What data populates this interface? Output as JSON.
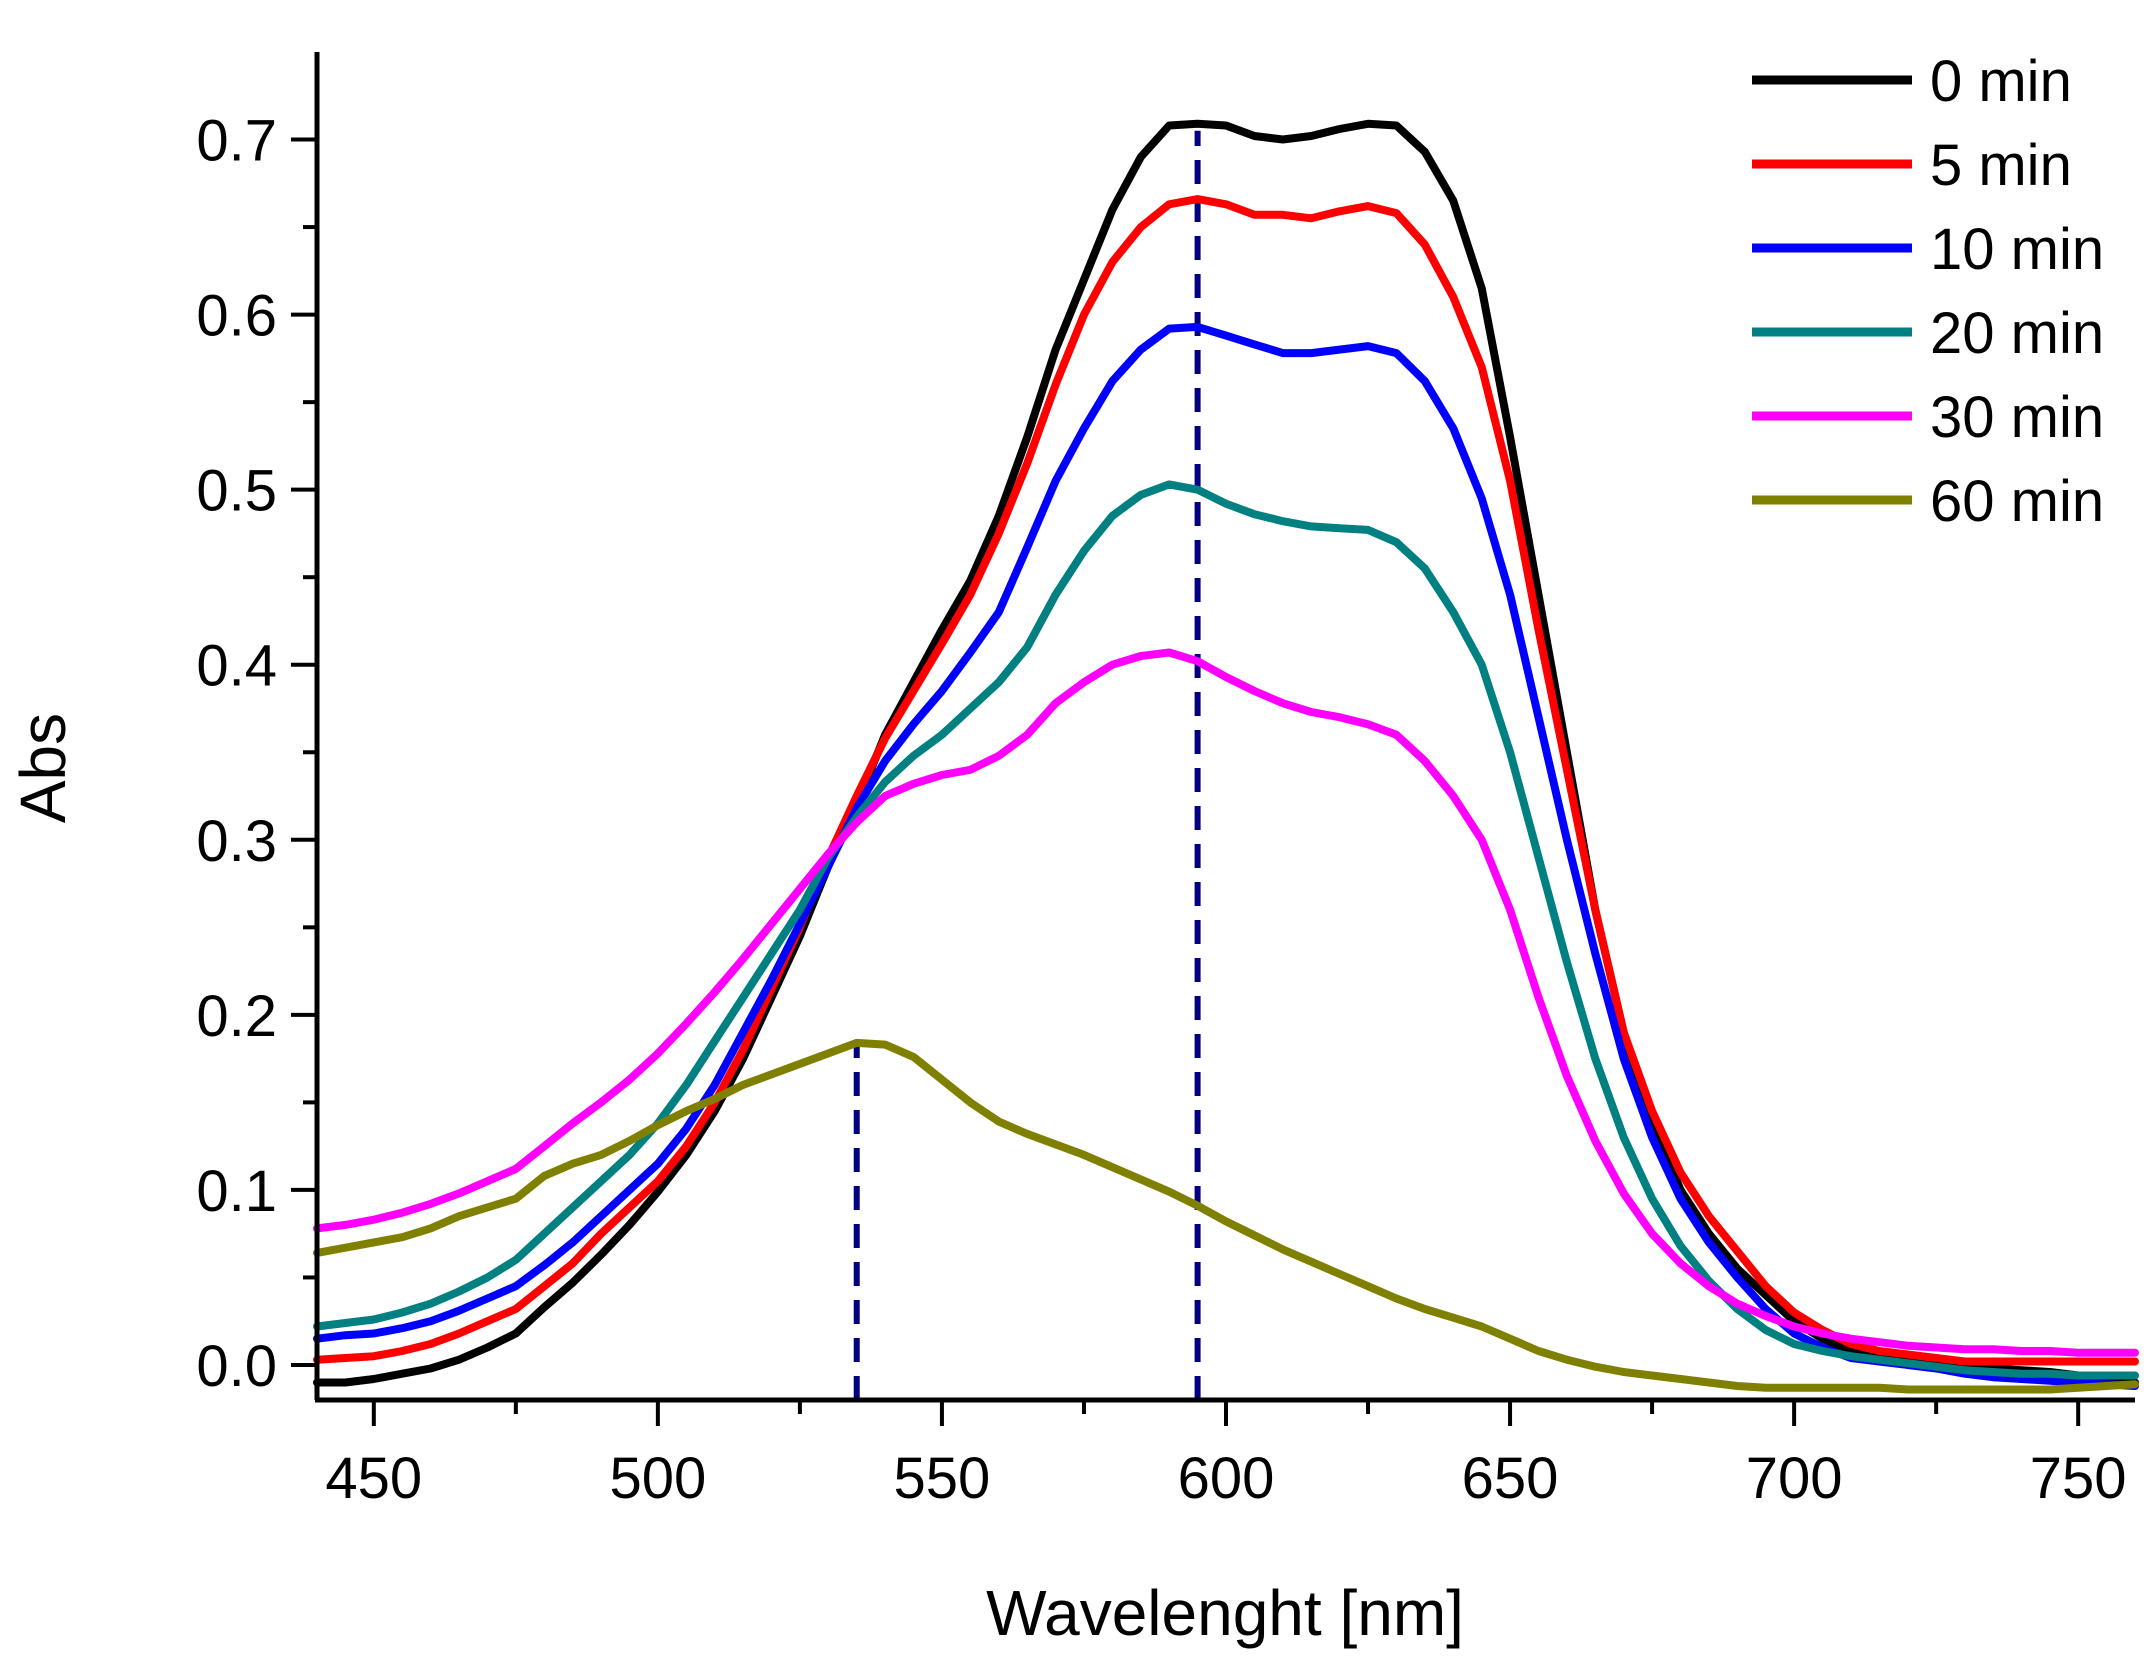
{
  "chart_data": {
    "type": "line",
    "title": "",
    "xlabel": "Wavelenght [nm]",
    "ylabel": "Abs",
    "xlim": [
      440,
      760
    ],
    "ylim": [
      -0.02,
      0.75
    ],
    "xticks": [
      450,
      500,
      550,
      600,
      650,
      700,
      750
    ],
    "yticks": [
      0.0,
      0.1,
      0.2,
      0.3,
      0.4,
      0.5,
      0.6,
      0.7
    ],
    "ytick_labels": [
      "0.0",
      "0.1",
      "0.2",
      "0.3",
      "0.4",
      "0.5",
      "0.6",
      "0.7"
    ],
    "x": [
      440,
      445,
      450,
      455,
      460,
      465,
      470,
      475,
      480,
      485,
      490,
      495,
      500,
      505,
      510,
      515,
      520,
      525,
      530,
      535,
      540,
      545,
      550,
      555,
      560,
      565,
      570,
      575,
      580,
      585,
      590,
      595,
      600,
      605,
      610,
      615,
      620,
      625,
      630,
      635,
      640,
      645,
      650,
      655,
      660,
      665,
      670,
      675,
      680,
      685,
      690,
      695,
      700,
      705,
      710,
      715,
      720,
      725,
      730,
      735,
      740,
      745,
      750,
      755,
      760
    ],
    "series": [
      {
        "name": "0 min",
        "color": "#000000",
        "values": [
          -0.01,
          -0.01,
          -0.008,
          -0.005,
          -0.002,
          0.003,
          0.01,
          0.018,
          0.033,
          0.047,
          0.063,
          0.08,
          0.099,
          0.12,
          0.145,
          0.175,
          0.21,
          0.245,
          0.285,
          0.32,
          0.36,
          0.39,
          0.42,
          0.448,
          0.485,
          0.53,
          0.58,
          0.62,
          0.66,
          0.69,
          0.708,
          0.709,
          0.708,
          0.702,
          0.7,
          0.702,
          0.706,
          0.709,
          0.708,
          0.693,
          0.665,
          0.615,
          0.53,
          0.44,
          0.35,
          0.26,
          0.19,
          0.14,
          0.1,
          0.075,
          0.055,
          0.04,
          0.025,
          0.015,
          0.008,
          0.005,
          0.003,
          0.001,
          0.0,
          -0.002,
          -0.003,
          -0.004,
          -0.006,
          -0.008,
          -0.01
        ]
      },
      {
        "name": "5 min",
        "color": "#FF0000",
        "values": [
          0.003,
          0.004,
          0.005,
          0.008,
          0.012,
          0.018,
          0.025,
          0.032,
          0.045,
          0.058,
          0.075,
          0.09,
          0.105,
          0.125,
          0.15,
          0.18,
          0.215,
          0.25,
          0.29,
          0.325,
          0.358,
          0.385,
          0.412,
          0.44,
          0.475,
          0.515,
          0.56,
          0.6,
          0.63,
          0.65,
          0.663,
          0.666,
          0.663,
          0.657,
          0.657,
          0.655,
          0.659,
          0.662,
          0.658,
          0.64,
          0.61,
          0.57,
          0.505,
          0.42,
          0.34,
          0.26,
          0.19,
          0.145,
          0.11,
          0.085,
          0.065,
          0.045,
          0.03,
          0.02,
          0.012,
          0.008,
          0.006,
          0.004,
          0.002,
          0.002,
          0.002,
          0.002,
          0.002,
          0.002,
          0.002
        ]
      },
      {
        "name": "10 min",
        "color": "#0000FF",
        "values": [
          0.015,
          0.017,
          0.018,
          0.021,
          0.025,
          0.031,
          0.038,
          0.045,
          0.057,
          0.07,
          0.085,
          0.1,
          0.115,
          0.135,
          0.16,
          0.19,
          0.22,
          0.252,
          0.285,
          0.318,
          0.345,
          0.366,
          0.385,
          0.407,
          0.43,
          0.467,
          0.505,
          0.535,
          0.562,
          0.58,
          0.592,
          0.593,
          0.588,
          0.583,
          0.578,
          0.578,
          0.58,
          0.582,
          0.578,
          0.562,
          0.535,
          0.495,
          0.44,
          0.37,
          0.3,
          0.235,
          0.175,
          0.13,
          0.095,
          0.07,
          0.05,
          0.032,
          0.018,
          0.01,
          0.004,
          0.002,
          0.0,
          -0.002,
          -0.005,
          -0.007,
          -0.008,
          -0.009,
          -0.01,
          -0.011,
          -0.012
        ]
      },
      {
        "name": "20 min",
        "color": "#008080",
        "values": [
          0.022,
          0.024,
          0.026,
          0.03,
          0.035,
          0.042,
          0.05,
          0.06,
          0.075,
          0.09,
          0.105,
          0.12,
          0.138,
          0.16,
          0.185,
          0.21,
          0.235,
          0.26,
          0.29,
          0.313,
          0.333,
          0.348,
          0.36,
          0.375,
          0.39,
          0.41,
          0.44,
          0.465,
          0.485,
          0.497,
          0.503,
          0.5,
          0.492,
          0.486,
          0.482,
          0.479,
          0.478,
          0.477,
          0.47,
          0.455,
          0.43,
          0.4,
          0.35,
          0.29,
          0.23,
          0.175,
          0.13,
          0.095,
          0.068,
          0.048,
          0.032,
          0.02,
          0.012,
          0.008,
          0.005,
          0.003,
          0.001,
          -0.001,
          -0.003,
          -0.004,
          -0.005,
          -0.005,
          -0.006,
          -0.006,
          -0.006
        ]
      },
      {
        "name": "30 min",
        "color": "#FF00FF",
        "values": [
          0.078,
          0.08,
          0.083,
          0.087,
          0.092,
          0.098,
          0.105,
          0.112,
          0.125,
          0.138,
          0.15,
          0.163,
          0.178,
          0.195,
          0.213,
          0.232,
          0.252,
          0.272,
          0.292,
          0.31,
          0.325,
          0.332,
          0.337,
          0.34,
          0.348,
          0.36,
          0.378,
          0.39,
          0.4,
          0.405,
          0.407,
          0.402,
          0.393,
          0.385,
          0.378,
          0.373,
          0.37,
          0.366,
          0.36,
          0.345,
          0.325,
          0.3,
          0.26,
          0.21,
          0.165,
          0.128,
          0.098,
          0.075,
          0.058,
          0.045,
          0.035,
          0.028,
          0.022,
          0.018,
          0.015,
          0.013,
          0.011,
          0.01,
          0.009,
          0.009,
          0.008,
          0.008,
          0.007,
          0.007,
          0.007
        ]
      },
      {
        "name": "60 min",
        "color": "#808000",
        "values": [
          0.064,
          0.067,
          0.07,
          0.073,
          0.078,
          0.085,
          0.09,
          0.095,
          0.108,
          0.115,
          0.12,
          0.128,
          0.137,
          0.145,
          0.152,
          0.16,
          0.166,
          0.172,
          0.178,
          0.184,
          0.183,
          0.176,
          0.163,
          0.15,
          0.139,
          0.132,
          0.126,
          0.12,
          0.113,
          0.106,
          0.099,
          0.091,
          0.082,
          0.074,
          0.066,
          0.059,
          0.052,
          0.045,
          0.038,
          0.032,
          0.027,
          0.022,
          0.015,
          0.008,
          0.003,
          -0.001,
          -0.004,
          -0.006,
          -0.008,
          -0.01,
          -0.012,
          -0.013,
          -0.013,
          -0.013,
          -0.013,
          -0.013,
          -0.014,
          -0.014,
          -0.014,
          -0.014,
          -0.014,
          -0.014,
          -0.013,
          -0.012,
          -0.011
        ]
      }
    ],
    "reference_lines": [
      {
        "x": 535,
        "y_top": 0.184,
        "style": "dashed",
        "color": "#000080"
      },
      {
        "x": 595,
        "y_top": 0.705,
        "style": "dashed",
        "color": "#000080"
      }
    ],
    "legend_position": "top-right",
    "grid": false
  }
}
